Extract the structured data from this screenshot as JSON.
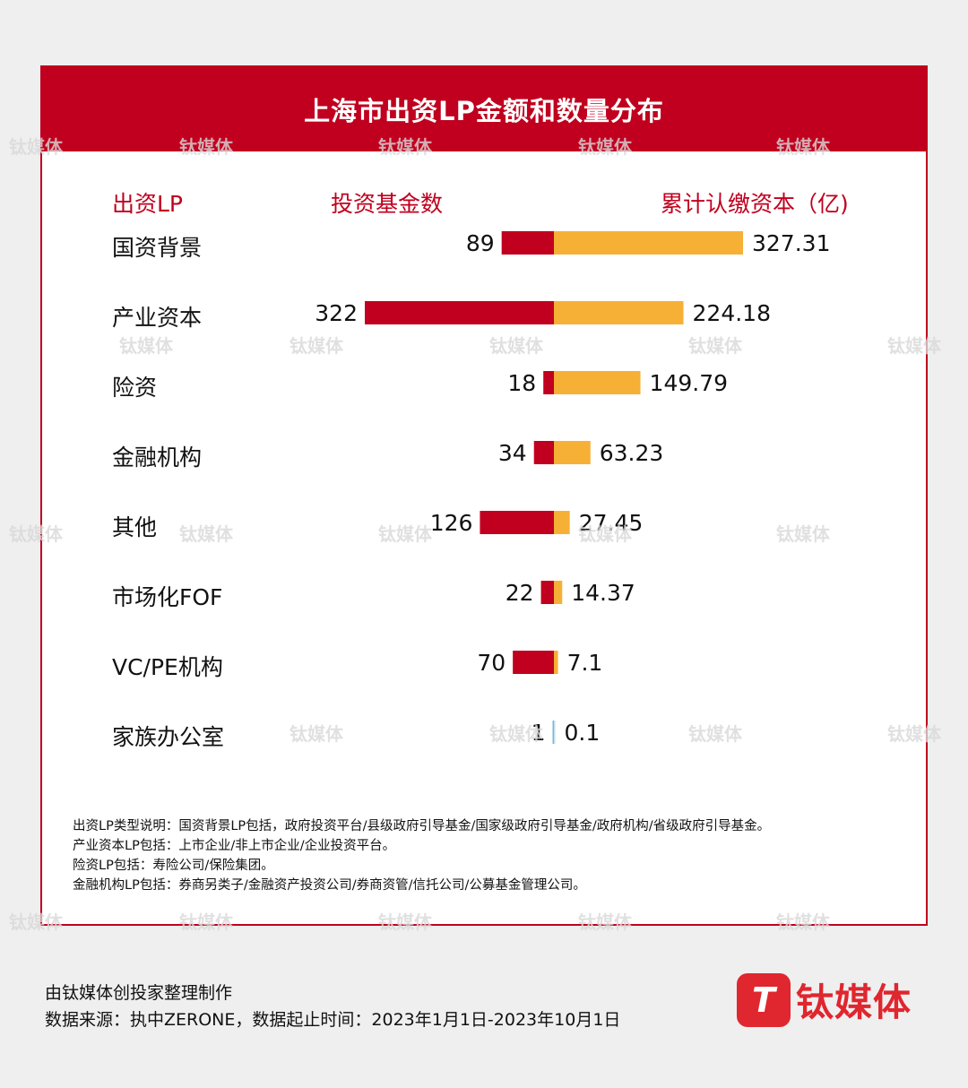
{
  "title": "上海市出资LP金额和数量分布",
  "headers": {
    "lp": "出资LP",
    "count": "投资基金数",
    "capital": "累计认缴资本（亿)"
  },
  "colors": {
    "count_bar": "#c0001e",
    "capital_bar": "#f7b036",
    "accent": "#c0001e"
  },
  "chart_data": {
    "type": "bar",
    "categories": [
      "国资背景",
      "产业资本",
      "险资",
      "金融机构",
      "其他",
      "市场化FOF",
      "VC/PE机构",
      "家族办公室"
    ],
    "series": [
      {
        "name": "投资基金数",
        "values": [
          89,
          322,
          18,
          34,
          126,
          22,
          70,
          1
        ]
      },
      {
        "name": "累计认缴资本（亿)",
        "values": [
          327.31,
          224.18,
          149.79,
          63.23,
          27.45,
          14.37,
          7.1,
          0.1
        ]
      }
    ],
    "value_labels": {
      "count": [
        "89",
        "322",
        "18",
        "34",
        "126",
        "22",
        "70",
        "1"
      ],
      "capital": [
        "327.31",
        "224.18",
        "149.79",
        "63.23",
        "27.45",
        "14.37",
        "7.1",
        "0.1"
      ]
    }
  },
  "notes": [
    "出资LP类型说明：国资背景LP包括，政府投资平台/县级政府引导基金/国家级政府引导基金/政府机构/省级政府引导基金。",
    "产业资本LP包括：上市企业/非上市企业/企业投资平台。",
    "险资LP包括：寿险公司/保险集团。",
    "金融机构LP包括：券商另类子/金融资产投资公司/券商资管/信托公司/公募基金管理公司。"
  ],
  "footer": {
    "line1": "由钛媒体创投家整理制作",
    "line2": "数据来源：执中ZERONE，数据起止时间：2023年1月1日-2023年10月1日"
  },
  "logo": {
    "mark": "T",
    "text": "钛媒体"
  },
  "watermark": "钛媒体"
}
